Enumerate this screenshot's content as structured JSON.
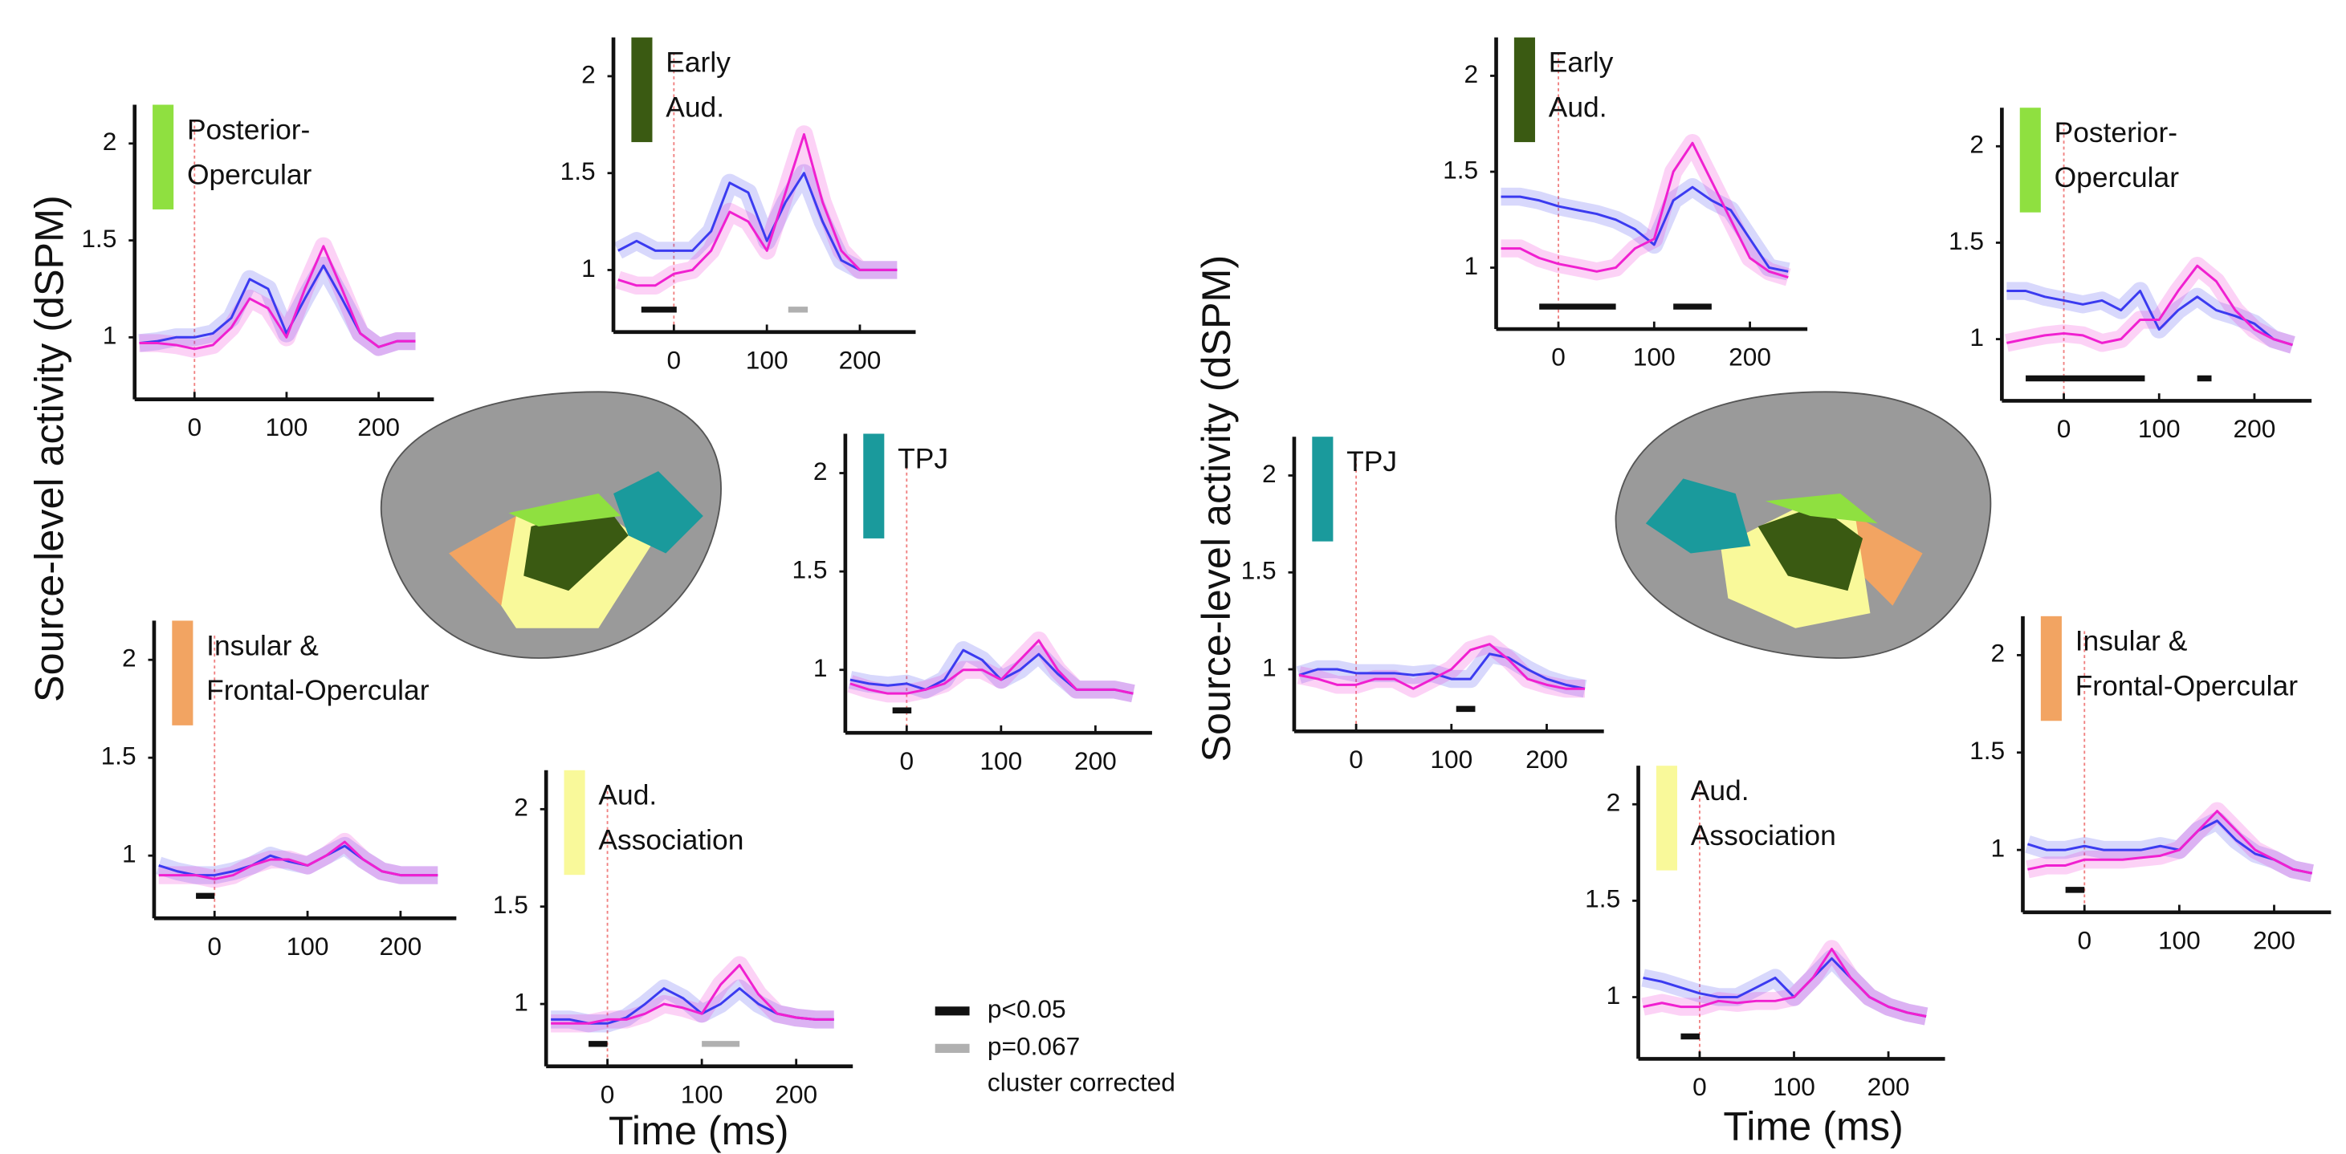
{
  "chart_data": [
    {
      "type": "line",
      "label": [
        "Posterior-",
        "Opercular"
      ],
      "swatch": "#8fe040",
      "x": [
        -60,
        -40,
        -20,
        0,
        20,
        40,
        60,
        80,
        100,
        120,
        140,
        160,
        180,
        200,
        220,
        240
      ],
      "series": [
        {
          "color": "#3b3bf0",
          "values": [
            0.97,
            0.98,
            1.0,
            1.0,
            1.02,
            1.1,
            1.3,
            1.25,
            1.02,
            1.2,
            1.37,
            1.2,
            1.02,
            0.95,
            0.98,
            0.98
          ]
        },
        {
          "color": "#f020d0",
          "values": [
            0.97,
            0.97,
            0.96,
            0.94,
            0.96,
            1.05,
            1.2,
            1.15,
            1.0,
            1.25,
            1.47,
            1.25,
            1.02,
            0.95,
            0.98,
            0.98
          ]
        }
      ],
      "xlim": [
        -65,
        260
      ],
      "ylim": [
        0.68,
        2.2
      ],
      "xticks": [
        0,
        100,
        200
      ],
      "yticks": [
        1,
        1.5,
        2
      ],
      "clusters": []
    },
    {
      "type": "line",
      "label": [
        "Early",
        "Aud."
      ],
      "swatch": "#3a5a12",
      "x": [
        -60,
        -40,
        -20,
        0,
        20,
        40,
        60,
        80,
        100,
        120,
        140,
        160,
        180,
        200,
        220,
        240
      ],
      "series": [
        {
          "color": "#3b3bf0",
          "values": [
            1.1,
            1.15,
            1.1,
            1.1,
            1.1,
            1.2,
            1.45,
            1.4,
            1.15,
            1.35,
            1.5,
            1.25,
            1.05,
            1.0,
            1.0,
            1.0
          ]
        },
        {
          "color": "#f020d0",
          "values": [
            0.95,
            0.92,
            0.92,
            0.98,
            1.0,
            1.1,
            1.3,
            1.25,
            1.1,
            1.4,
            1.7,
            1.35,
            1.1,
            1.0,
            1.0,
            1.0
          ]
        }
      ],
      "xlim": [
        -65,
        260
      ],
      "ylim": [
        0.68,
        2.2
      ],
      "xticks": [
        0,
        100,
        200
      ],
      "yticks": [
        1,
        1.5,
        2
      ],
      "clusters": [
        {
          "x": [
            -35,
            3
          ],
          "color": "#111111"
        },
        {
          "x": [
            123,
            144
          ],
          "color": "#b0b0b0"
        }
      ]
    },
    {
      "type": "line",
      "label": [
        "TPJ"
      ],
      "swatch": "#1a9a9c",
      "x": [
        -60,
        -40,
        -20,
        0,
        20,
        40,
        60,
        80,
        100,
        120,
        140,
        160,
        180,
        200,
        220,
        240
      ],
      "series": [
        {
          "color": "#3b3bf0",
          "values": [
            0.95,
            0.93,
            0.92,
            0.93,
            0.9,
            0.95,
            1.1,
            1.05,
            0.95,
            1.0,
            1.08,
            0.98,
            0.9,
            0.9,
            0.9,
            0.88
          ]
        },
        {
          "color": "#f020d0",
          "values": [
            0.93,
            0.9,
            0.88,
            0.88,
            0.9,
            0.93,
            1.0,
            1.0,
            0.95,
            1.05,
            1.15,
            1.0,
            0.9,
            0.9,
            0.9,
            0.88
          ]
        }
      ],
      "xlim": [
        -65,
        260
      ],
      "ylim": [
        0.68,
        2.2
      ],
      "xticks": [
        0,
        100,
        200
      ],
      "yticks": [
        1,
        1.5,
        2
      ],
      "clusters": [
        {
          "x": [
            -15,
            5
          ],
          "color": "#111111"
        }
      ]
    },
    {
      "type": "line",
      "label": [
        "Insular &",
        "Frontal-Opercular"
      ],
      "swatch": "#f2a462",
      "x": [
        -60,
        -40,
        -20,
        0,
        20,
        40,
        60,
        80,
        100,
        120,
        140,
        160,
        180,
        200,
        220,
        240
      ],
      "series": [
        {
          "color": "#3b3bf0",
          "values": [
            0.95,
            0.92,
            0.9,
            0.9,
            0.92,
            0.95,
            1.0,
            0.97,
            0.95,
            1.0,
            1.05,
            0.98,
            0.92,
            0.9,
            0.9,
            0.9
          ]
        },
        {
          "color": "#f020d0",
          "values": [
            0.9,
            0.9,
            0.9,
            0.88,
            0.9,
            0.95,
            0.98,
            0.98,
            0.95,
            1.0,
            1.07,
            0.98,
            0.92,
            0.9,
            0.9,
            0.9
          ]
        }
      ],
      "xlim": [
        -65,
        260
      ],
      "ylim": [
        0.68,
        2.2
      ],
      "xticks": [
        0,
        100,
        200
      ],
      "yticks": [
        1,
        1.5,
        2
      ],
      "clusters": [
        {
          "x": [
            -20,
            0
          ],
          "color": "#111111"
        }
      ]
    },
    {
      "type": "line",
      "label": [
        "Aud.",
        "Association"
      ],
      "swatch": "#f9f99a",
      "x": [
        -60,
        -40,
        -20,
        0,
        20,
        40,
        60,
        80,
        100,
        120,
        140,
        160,
        180,
        200,
        220,
        240
      ],
      "series": [
        {
          "color": "#3b3bf0",
          "values": [
            0.92,
            0.92,
            0.9,
            0.9,
            0.93,
            1.0,
            1.08,
            1.03,
            0.95,
            1.0,
            1.08,
            1.0,
            0.95,
            0.93,
            0.92,
            0.92
          ]
        },
        {
          "color": "#f020d0",
          "values": [
            0.9,
            0.9,
            0.9,
            0.92,
            0.92,
            0.95,
            1.0,
            0.98,
            0.95,
            1.1,
            1.2,
            1.05,
            0.95,
            0.93,
            0.92,
            0.92
          ]
        }
      ],
      "xlim": [
        -65,
        260
      ],
      "ylim": [
        0.68,
        2.2
      ],
      "xticks": [
        0,
        100,
        200
      ],
      "yticks": [
        1,
        1.5,
        2
      ],
      "clusters": [
        {
          "x": [
            -20,
            0
          ],
          "color": "#111111"
        },
        {
          "x": [
            100,
            140
          ],
          "color": "#b0b0b0"
        }
      ]
    },
    {
      "type": "line",
      "label": [
        "Early",
        "Aud."
      ],
      "swatch": "#3a5a12",
      "x": [
        -60,
        -40,
        -20,
        0,
        20,
        40,
        60,
        80,
        100,
        120,
        140,
        160,
        180,
        200,
        220,
        240
      ],
      "series": [
        {
          "color": "#3b3bf0",
          "values": [
            1.37,
            1.37,
            1.35,
            1.32,
            1.3,
            1.28,
            1.25,
            1.2,
            1.12,
            1.35,
            1.42,
            1.35,
            1.3,
            1.15,
            1.0,
            0.98
          ]
        },
        {
          "color": "#f020d0",
          "values": [
            1.1,
            1.1,
            1.05,
            1.02,
            1.0,
            0.98,
            1.0,
            1.1,
            1.15,
            1.5,
            1.65,
            1.45,
            1.25,
            1.05,
            0.98,
            0.95
          ]
        }
      ],
      "xlim": [
        -65,
        260
      ],
      "ylim": [
        0.68,
        2.2
      ],
      "xticks": [
        0,
        100,
        200
      ],
      "yticks": [
        1,
        1.5,
        2
      ],
      "clusters": [
        {
          "x": [
            -20,
            60
          ],
          "color": "#111111"
        },
        {
          "x": [
            120,
            160
          ],
          "color": "#111111"
        }
      ]
    },
    {
      "type": "line",
      "label": [
        "Posterior-",
        "Opercular"
      ],
      "swatch": "#8fe040",
      "x": [
        -60,
        -40,
        -20,
        0,
        20,
        40,
        60,
        80,
        100,
        120,
        140,
        160,
        180,
        200,
        220,
        240
      ],
      "series": [
        {
          "color": "#3b3bf0",
          "values": [
            1.25,
            1.25,
            1.22,
            1.2,
            1.18,
            1.2,
            1.15,
            1.25,
            1.05,
            1.15,
            1.22,
            1.15,
            1.12,
            1.08,
            1.0,
            0.97
          ]
        },
        {
          "color": "#f020d0",
          "values": [
            0.98,
            1.0,
            1.02,
            1.03,
            1.02,
            0.98,
            1.0,
            1.1,
            1.1,
            1.25,
            1.38,
            1.3,
            1.15,
            1.05,
            1.0,
            0.97
          ]
        }
      ],
      "xlim": [
        -65,
        260
      ],
      "ylim": [
        0.68,
        2.2
      ],
      "xticks": [
        0,
        100,
        200
      ],
      "yticks": [
        1,
        1.5,
        2
      ],
      "clusters": [
        {
          "x": [
            -40,
            85
          ],
          "color": "#111111"
        },
        {
          "x": [
            140,
            155
          ],
          "color": "#111111"
        }
      ]
    },
    {
      "type": "line",
      "label": [
        "TPJ"
      ],
      "swatch": "#1a9a9c",
      "x": [
        -60,
        -40,
        -20,
        0,
        20,
        40,
        60,
        80,
        100,
        120,
        140,
        160,
        180,
        200,
        220,
        240
      ],
      "series": [
        {
          "color": "#3b3bf0",
          "values": [
            0.97,
            1.0,
            1.0,
            0.98,
            0.98,
            0.98,
            0.97,
            0.98,
            0.95,
            0.95,
            1.08,
            1.06,
            1.0,
            0.95,
            0.92,
            0.9
          ]
        },
        {
          "color": "#f020d0",
          "values": [
            0.97,
            0.95,
            0.92,
            0.92,
            0.95,
            0.95,
            0.9,
            0.95,
            1.0,
            1.1,
            1.13,
            1.05,
            0.95,
            0.92,
            0.9,
            0.9
          ]
        }
      ],
      "xlim": [
        -65,
        260
      ],
      "ylim": [
        0.68,
        2.2
      ],
      "xticks": [
        0,
        100,
        200
      ],
      "yticks": [
        1,
        1.5,
        2
      ],
      "clusters": [
        {
          "x": [
            105,
            125
          ],
          "color": "#111111"
        }
      ]
    },
    {
      "type": "line",
      "label": [
        "Insular &",
        "Frontal-Opercular"
      ],
      "swatch": "#f2a462",
      "x": [
        -60,
        -40,
        -20,
        0,
        20,
        40,
        60,
        80,
        100,
        120,
        140,
        160,
        180,
        200,
        220,
        240
      ],
      "series": [
        {
          "color": "#3b3bf0",
          "values": [
            1.03,
            1.0,
            1.0,
            1.02,
            1.0,
            1.0,
            1.0,
            1.02,
            1.0,
            1.1,
            1.15,
            1.05,
            0.98,
            0.95,
            0.9,
            0.88
          ]
        },
        {
          "color": "#f020d0",
          "values": [
            0.9,
            0.92,
            0.92,
            0.95,
            0.95,
            0.95,
            0.96,
            0.97,
            1.0,
            1.1,
            1.2,
            1.1,
            1.0,
            0.95,
            0.9,
            0.88
          ]
        }
      ],
      "xlim": [
        -65,
        260
      ],
      "ylim": [
        0.68,
        2.2
      ],
      "xticks": [
        0,
        100,
        200
      ],
      "yticks": [
        1,
        1.5,
        2
      ],
      "clusters": [
        {
          "x": [
            -20,
            0
          ],
          "color": "#111111"
        }
      ]
    },
    {
      "type": "line",
      "label": [
        "Aud.",
        "Association"
      ],
      "swatch": "#f9f99a",
      "x": [
        -60,
        -40,
        -20,
        0,
        20,
        40,
        60,
        80,
        100,
        120,
        140,
        160,
        180,
        200,
        220,
        240
      ],
      "series": [
        {
          "color": "#3b3bf0",
          "values": [
            1.1,
            1.08,
            1.05,
            1.02,
            1.0,
            1.0,
            1.05,
            1.1,
            1.0,
            1.1,
            1.2,
            1.1,
            1.0,
            0.95,
            0.92,
            0.9
          ]
        },
        {
          "color": "#f020d0",
          "values": [
            0.95,
            0.97,
            0.95,
            0.95,
            0.98,
            0.97,
            0.98,
            0.98,
            1.0,
            1.1,
            1.25,
            1.1,
            1.0,
            0.95,
            0.92,
            0.9
          ]
        }
      ],
      "xlim": [
        -65,
        260
      ],
      "ylim": [
        0.68,
        2.2
      ],
      "xticks": [
        0,
        100,
        200
      ],
      "yticks": [
        1,
        1.5,
        2
      ],
      "clusters": [
        {
          "x": [
            -20,
            0
          ],
          "color": "#111111"
        }
      ]
    }
  ],
  "y_axis_labels": [
    "Source-level activity  (dSPM)",
    "Source-level activity  (dSPM)"
  ],
  "x_axis_labels": [
    "Time (ms)",
    "Time (ms)"
  ],
  "legend": {
    "items": [
      {
        "label": "p<0.05",
        "color": "#111111"
      },
      {
        "label": "p=0.067",
        "color": "#b0b0b0"
      }
    ],
    "note": "cluster corrected"
  }
}
